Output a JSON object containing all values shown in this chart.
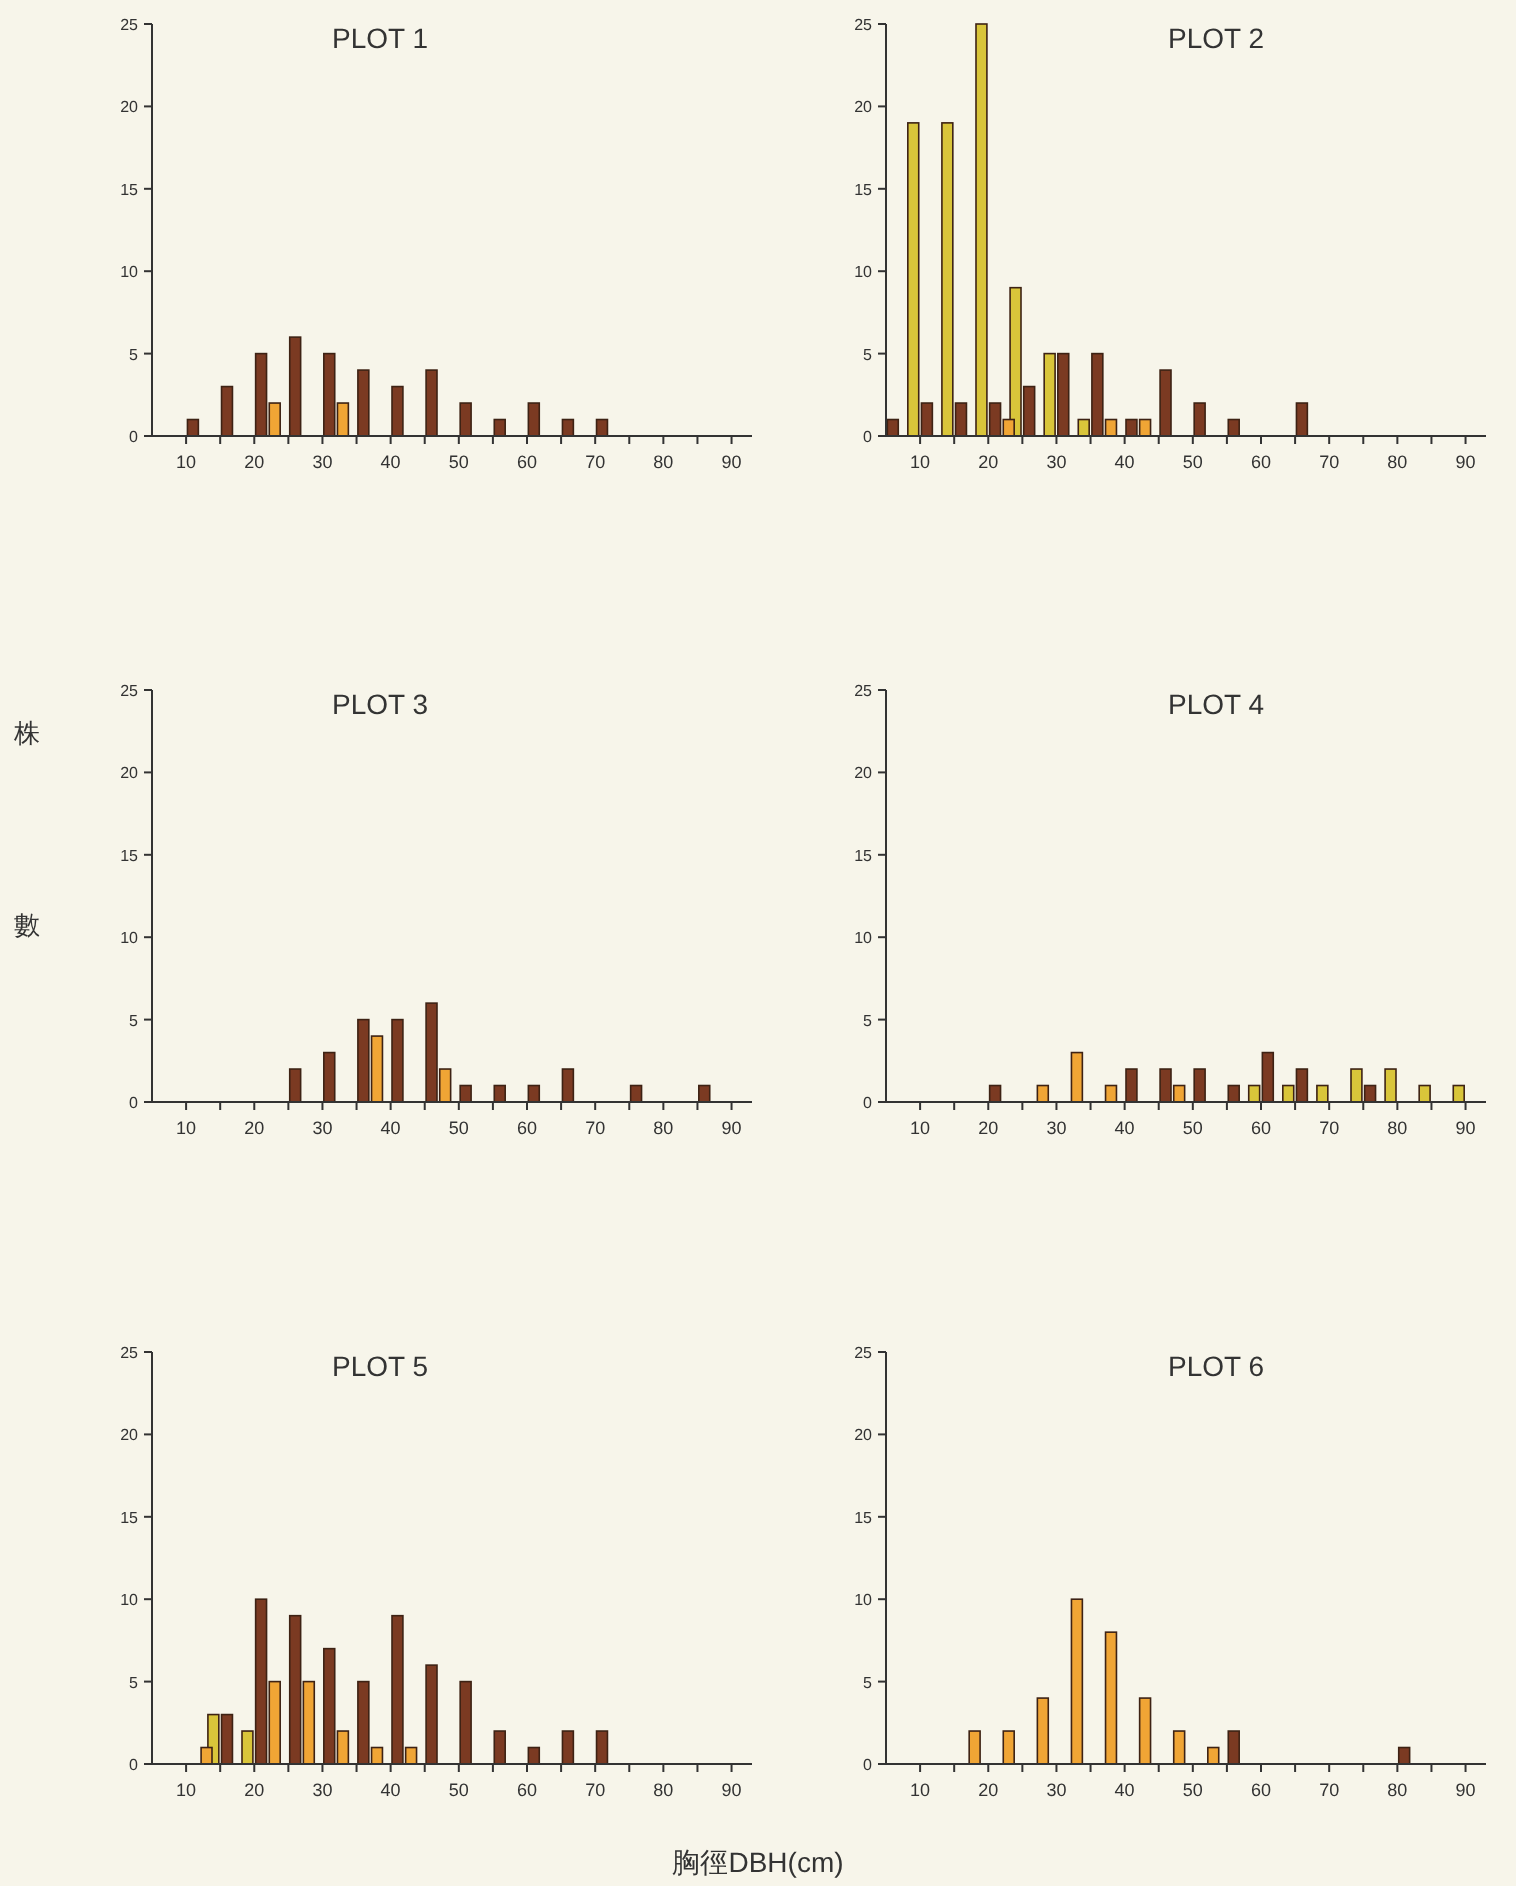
{
  "chart_data": [
    {
      "type": "bar",
      "title": "PLOT 1",
      "xlim": [
        5,
        93
      ],
      "ylim": [
        0,
        25
      ],
      "yticks": [
        0,
        5,
        10,
        15,
        20,
        25
      ],
      "xticks": [
        10,
        {
          "value": 15,
          "label": null
        },
        20,
        {
          "value": 25,
          "label": null
        },
        30,
        {
          "value": 35,
          "label": null
        },
        40,
        {
          "value": 45,
          "label": null
        },
        50,
        {
          "value": 55,
          "label": null
        },
        60,
        {
          "value": 65,
          "label": null
        },
        70,
        {
          "value": 75,
          "label": null
        },
        80,
        {
          "value": 85,
          "label": null
        },
        90
      ],
      "series": [
        {
          "color": "#7b3a22",
          "x": [
            11,
            16,
            21,
            26,
            31,
            36,
            41,
            46,
            51,
            56,
            61,
            66,
            71
          ],
          "values": [
            1,
            3,
            5,
            6,
            5,
            4,
            3,
            4,
            2,
            1,
            2,
            1,
            1
          ]
        },
        {
          "color": "#f0a535",
          "x": [
            23,
            33
          ],
          "values": [
            2,
            2
          ]
        }
      ]
    },
    {
      "type": "bar",
      "title": "PLOT 2",
      "xlim": [
        5,
        93
      ],
      "ylim": [
        0,
        25
      ],
      "yticks": [
        0,
        5,
        10,
        15,
        20,
        25
      ],
      "xticks": [
        10,
        {
          "value": 15,
          "label": null
        },
        20,
        {
          "value": 25,
          "label": null
        },
        30,
        {
          "value": 35,
          "label": null
        },
        40,
        {
          "value": 45,
          "label": null
        },
        50,
        {
          "value": 55,
          "label": null
        },
        60,
        {
          "value": 65,
          "label": null
        },
        70,
        {
          "value": 75,
          "label": null
        },
        80,
        {
          "value": 85,
          "label": null
        },
        90
      ],
      "series": [
        {
          "color": "#d9c53a",
          "x": [
            9,
            14,
            19,
            24,
            29,
            34
          ],
          "values": [
            19,
            19,
            25,
            9,
            5,
            1
          ]
        },
        {
          "color": "#7b3a22",
          "x": [
            6,
            11,
            16,
            21,
            26,
            31,
            36,
            41,
            46,
            51,
            56,
            66
          ],
          "values": [
            1,
            2,
            2,
            2,
            3,
            5,
            5,
            1,
            4,
            2,
            1,
            2
          ]
        },
        {
          "color": "#f0a535",
          "x": [
            23,
            38,
            43
          ],
          "values": [
            1,
            1,
            1
          ]
        }
      ]
    },
    {
      "type": "bar",
      "title": "PLOT 3",
      "ylabel": "株數",
      "xlim": [
        5,
        93
      ],
      "ylim": [
        0,
        25
      ],
      "yticks": [
        0,
        5,
        10,
        15,
        20,
        25
      ],
      "xticks": [
        10,
        {
          "value": 15,
          "label": null
        },
        20,
        {
          "value": 25,
          "label": null
        },
        30,
        {
          "value": 35,
          "label": null
        },
        40,
        {
          "value": 45,
          "label": null
        },
        50,
        {
          "value": 55,
          "label": null
        },
        60,
        {
          "value": 65,
          "label": null
        },
        70,
        {
          "value": 75,
          "label": null
        },
        80,
        {
          "value": 85,
          "label": null
        },
        90
      ],
      "series": [
        {
          "color": "#7b3a22",
          "x": [
            26,
            31,
            36,
            41,
            46,
            51,
            56,
            61,
            66,
            76,
            86
          ],
          "values": [
            2,
            3,
            5,
            5,
            6,
            1,
            1,
            1,
            2,
            1,
            1
          ]
        },
        {
          "color": "#f0a535",
          "x": [
            38,
            48
          ],
          "values": [
            4,
            2
          ]
        }
      ]
    },
    {
      "type": "bar",
      "title": "PLOT 4",
      "xlim": [
        5,
        93
      ],
      "ylim": [
        0,
        25
      ],
      "yticks": [
        0,
        5,
        10,
        15,
        20,
        25
      ],
      "xticks": [
        10,
        {
          "value": 15,
          "label": null
        },
        20,
        {
          "value": 25,
          "label": null
        },
        30,
        {
          "value": 35,
          "label": null
        },
        40,
        {
          "value": 45,
          "label": null
        },
        50,
        {
          "value": 55,
          "label": null
        },
        60,
        {
          "value": 65,
          "label": null
        },
        70,
        {
          "value": 75,
          "label": null
        },
        80,
        {
          "value": 85,
          "label": null
        },
        90
      ],
      "series": [
        {
          "color": "#d9c53a",
          "x": [
            59,
            64,
            69,
            74,
            79,
            84,
            89
          ],
          "values": [
            1,
            1,
            1,
            2,
            2,
            1,
            1
          ]
        },
        {
          "color": "#7b3a22",
          "x": [
            21,
            41,
            46,
            51,
            56,
            61,
            66,
            76
          ],
          "values": [
            1,
            2,
            2,
            2,
            1,
            3,
            2,
            1
          ]
        },
        {
          "color": "#f0a535",
          "x": [
            28,
            33,
            38,
            48
          ],
          "values": [
            1,
            3,
            1,
            1
          ]
        }
      ]
    },
    {
      "type": "bar",
      "title": "PLOT 5",
      "xlabel": "胸徑DBH(cm)",
      "xlim": [
        5,
        93
      ],
      "ylim": [
        0,
        25
      ],
      "yticks": [
        0,
        5,
        10,
        15,
        20,
        25
      ],
      "xticks": [
        10,
        {
          "value": 15,
          "label": null
        },
        20,
        {
          "value": 25,
          "label": null
        },
        30,
        {
          "value": 35,
          "label": null
        },
        40,
        {
          "value": 45,
          "label": null
        },
        50,
        {
          "value": 55,
          "label": null
        },
        60,
        {
          "value": 65,
          "label": null
        },
        70,
        {
          "value": 75,
          "label": null
        },
        80,
        {
          "value": 85,
          "label": null
        },
        90
      ],
      "series": [
        {
          "color": "#d9c53a",
          "x": [
            14,
            19
          ],
          "values": [
            3,
            2
          ]
        },
        {
          "color": "#7b3a22",
          "x": [
            16,
            21,
            26,
            31,
            36,
            41,
            46,
            51,
            56,
            61,
            66,
            71
          ],
          "values": [
            3,
            10,
            9,
            7,
            5,
            9,
            6,
            5,
            2,
            1,
            2,
            2
          ]
        },
        {
          "color": "#f0a535",
          "x": [
            13,
            23,
            28,
            33,
            38,
            43
          ],
          "values": [
            1,
            5,
            5,
            2,
            1,
            1
          ]
        }
      ]
    },
    {
      "type": "bar",
      "title": "PLOT 6",
      "xlim": [
        5,
        93
      ],
      "ylim": [
        0,
        25
      ],
      "yticks": [
        0,
        5,
        10,
        15,
        20,
        25
      ],
      "xticks": [
        10,
        {
          "value": 15,
          "label": null
        },
        20,
        {
          "value": 25,
          "label": null
        },
        30,
        {
          "value": 35,
          "label": null
        },
        40,
        {
          "value": 45,
          "label": null
        },
        50,
        {
          "value": 55,
          "label": null
        },
        60,
        {
          "value": 65,
          "label": null
        },
        70,
        {
          "value": 75,
          "label": null
        },
        80,
        {
          "value": 85,
          "label": null
        },
        90
      ],
      "series": [
        {
          "color": "#7b3a22",
          "x": [
            56,
            81
          ],
          "values": [
            2,
            1
          ]
        },
        {
          "color": "#f0a535",
          "x": [
            18,
            23,
            28,
            33,
            38,
            43,
            48,
            53
          ],
          "values": [
            2,
            2,
            4,
            10,
            8,
            4,
            2,
            1
          ]
        }
      ]
    }
  ]
}
